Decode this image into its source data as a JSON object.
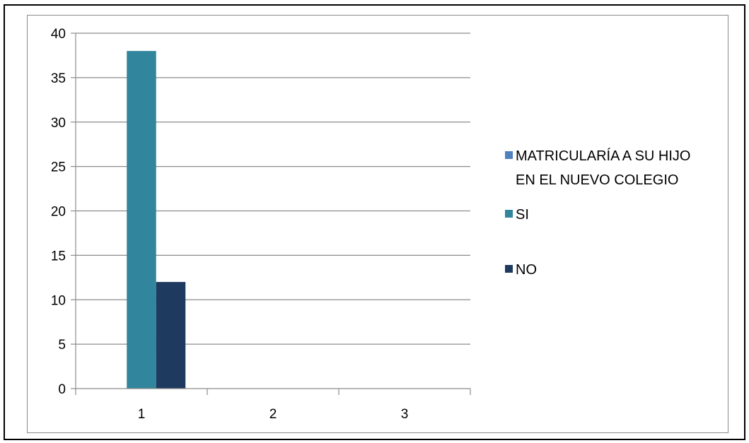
{
  "chart_data": {
    "type": "bar",
    "categories": [
      "1",
      "2",
      "3"
    ],
    "series": [
      {
        "name": "MATRICULARÍA A SU HIJO EN EL NUEVO COLEGIO",
        "values": [
          0,
          0,
          0
        ],
        "color": "#4f81bd"
      },
      {
        "name": "SI",
        "values": [
          38,
          0,
          0
        ],
        "color": "#31859c"
      },
      {
        "name": "NO",
        "values": [
          12,
          0,
          0
        ],
        "color": "#1f3a5f"
      }
    ],
    "title": "",
    "xlabel": "",
    "ylabel": "",
    "ylim": [
      0,
      40
    ],
    "yticks": [
      "0",
      "5",
      "10",
      "15",
      "20",
      "25",
      "30",
      "35",
      "40"
    ],
    "grid": true,
    "legend_position": "right"
  }
}
